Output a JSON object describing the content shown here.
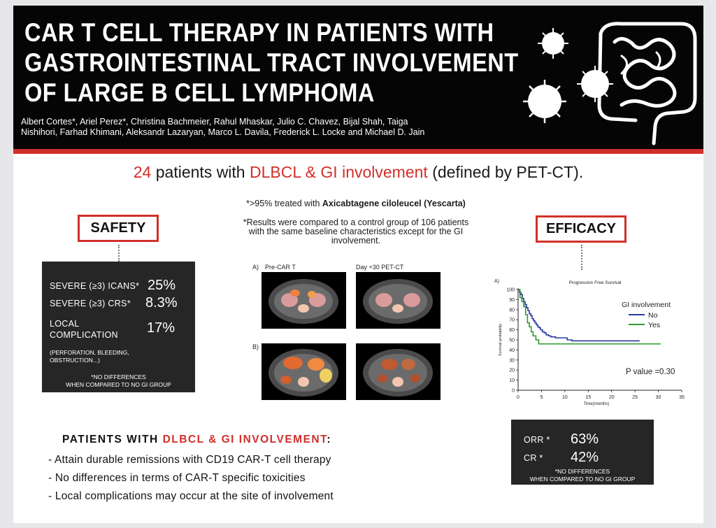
{
  "title": {
    "lines": [
      "CAR T CELL THERAPY IN PATIENTS WITH",
      "GASTROINTESTINAL TRACT INVOLVEMENT",
      "OF LARGE B CELL LYMPHOMA"
    ],
    "authors_line1": "Albert Cortes*, Ariel Perez*, Christina Bachmeier, Rahul Mhaskar, Julio C. Chavez, Bijal Shah, Taiga",
    "authors_line2": "Nishihori, Farhad Khimani, Aleksandr Lazaryan, Marco L. Davila, Frederick L. Locke and Michael D. Jain"
  },
  "headline": {
    "count": "24",
    "text1": " patients with ",
    "highlight": "DLBCL & GI involvement",
    "text2": " (defined by PET-CT)."
  },
  "notes": {
    "treated_prefix": "*>95% treated with ",
    "treated_drug": "Axicabtagene ciloleucel (Yescarta)",
    "control_line1": "*Results were compared to a control group of 106 patients",
    "control_line2": "with the same baseline characteristics except for the GI",
    "control_line3": "involvement."
  },
  "safety": {
    "heading": "SAFETY",
    "icans_label": "SEVERE (≥3) ICANS*",
    "icans_value": "25%",
    "crs_label": "SEVERE (≥3) CRS*",
    "crs_value": "8.3%",
    "local_label1": "LOCAL",
    "local_label2": "COMPLICATION",
    "local_value": "17%",
    "local_detail1": "(PERFORATION, BLEEDING,",
    "local_detail2": "OBSTRUCTION...)",
    "footnote1": "*NO DIFFERENCES",
    "footnote2": "WHEN COMPARED TO NO GI GROUP"
  },
  "scans": {
    "label_a": "A)",
    "pre": "Pre-CAR T",
    "post": "Day +30 PET-CT",
    "label_b": "B)"
  },
  "efficacy": {
    "heading": "EFFICACY",
    "orr_label": "ORR *",
    "orr_value": "63%",
    "cr_label": "CR *",
    "cr_value": "42%",
    "footnote1": "*NO DIFFERENCES",
    "footnote2": "WHEN COMPARED TO NO GI GROUP"
  },
  "chart_data": {
    "type": "line",
    "panel_label": "A)",
    "title": "Progression Free Survival",
    "xlabel": "Time(months)",
    "ylabel": "Survival probability",
    "xlim": [
      0,
      35
    ],
    "ylim": [
      0,
      100
    ],
    "xticks": [
      0,
      5,
      10,
      15,
      20,
      25,
      30,
      35
    ],
    "yticks": [
      0,
      10,
      20,
      30,
      40,
      50,
      60,
      70,
      80,
      90,
      100
    ],
    "legend_title": "GI involvement",
    "annotation": "P value =0.30",
    "series": [
      {
        "name": "No",
        "color": "#2a3aa0",
        "x": [
          0,
          0.3,
          0.6,
          0.9,
          1.2,
          1.5,
          1.8,
          2.1,
          2.4,
          2.7,
          3.0,
          3.3,
          3.6,
          3.9,
          4.2,
          4.5,
          4.8,
          5.2,
          5.6,
          6.0,
          6.5,
          7.0,
          8.0,
          9.5,
          10.5,
          11.5,
          12.5,
          26.0
        ],
        "y": [
          100,
          97,
          95,
          91,
          88,
          85,
          82,
          79,
          76,
          74,
          71,
          69,
          67,
          65,
          63,
          62,
          60,
          58,
          57,
          55,
          54,
          53,
          52,
          52,
          50,
          49,
          49,
          49
        ]
      },
      {
        "name": "Yes",
        "color": "#2e9a2e",
        "x": [
          0,
          0.4,
          0.8,
          1.2,
          1.6,
          2.0,
          2.4,
          2.8,
          3.2,
          3.8,
          4.4,
          30.5
        ],
        "y": [
          100,
          92,
          88,
          83,
          75,
          67,
          63,
          58,
          54,
          50,
          46,
          46
        ]
      }
    ]
  },
  "conclusions": {
    "title_prefix": "PATIENTS WITH ",
    "title_highlight": "DLBCL & GI INVOLVEMENT",
    "title_suffix": ":",
    "bullets": [
      "- Attain durable remissions with CD19 CAR-T cell therapy",
      "- No differences in terms of CAR-T specific toxicities",
      "- Local complications may occur at the site of involvement"
    ]
  }
}
